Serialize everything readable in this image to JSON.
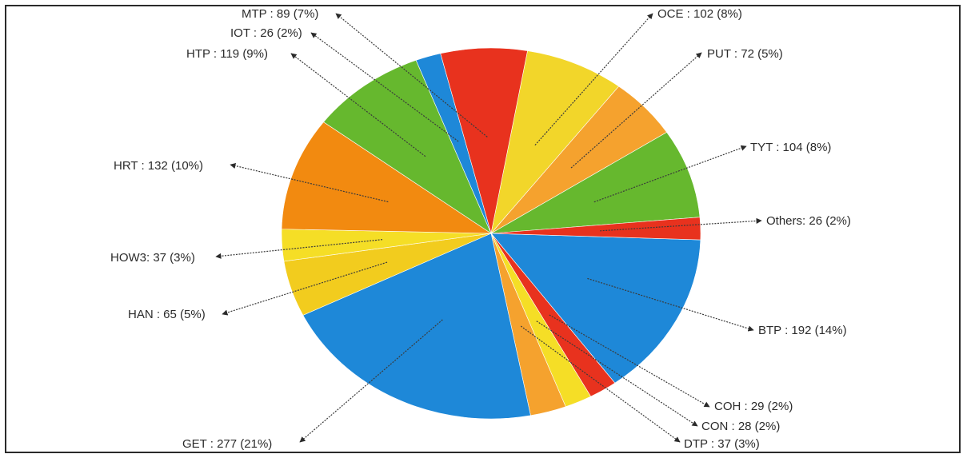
{
  "chart_data": {
    "type": "pie",
    "title": "",
    "legend": "none",
    "slices": [
      {
        "label": "BTP",
        "value": 192,
        "percent": "14%",
        "display": "BTP : 192 (14%)",
        "color": "#1E88D8"
      },
      {
        "label": "COH",
        "value": 29,
        "percent": "2%",
        "display": "COH : 29 (2%)",
        "color": "#E8321E"
      },
      {
        "label": "CON",
        "value": 28,
        "percent": "2%",
        "display": "CON : 28 (2%)",
        "color": "#F5DE26"
      },
      {
        "label": "DTP",
        "value": 37,
        "percent": "3%",
        "display": "DTP : 37 (3%)",
        "color": "#F5A22E"
      },
      {
        "label": "GET",
        "value": 277,
        "percent": "21%",
        "display": "GET : 277 (21%)",
        "color": "#1E88D8"
      },
      {
        "label": "HAN",
        "value": 65,
        "percent": "5%",
        "display": "HAN : 65 (5%)",
        "color": "#F2CC1E"
      },
      {
        "label": "HOW3",
        "value": 37,
        "percent": "3%",
        "display": "HOW3: 37 (3%)",
        "color": "#F5DE26"
      },
      {
        "label": "HRT",
        "value": 132,
        "percent": "10%",
        "display": "HRT : 132 (10%)",
        "color": "#F28A10"
      },
      {
        "label": "HTP",
        "value": 119,
        "percent": "9%",
        "display": "HTP : 119 (9%)",
        "color": "#66B82E"
      },
      {
        "label": "IOT",
        "value": 26,
        "percent": "2%",
        "display": "IOT : 26 (2%)",
        "color": "#1E88D8"
      },
      {
        "label": "MTP",
        "value": 89,
        "percent": "7%",
        "display": "MTP : 89 (7%)",
        "color": "#E8321E"
      },
      {
        "label": "OCE",
        "value": 102,
        "percent": "8%",
        "display": "OCE : 102 (8%)",
        "color": "#F2D62A"
      },
      {
        "label": "PUT",
        "value": 72,
        "percent": "5%",
        "display": "PUT : 72 (5%)",
        "color": "#F5A22E"
      },
      {
        "label": "TYT",
        "value": 104,
        "percent": "8%",
        "display": "TYT : 104 (8%)",
        "color": "#66B82E"
      },
      {
        "label": "Others",
        "value": 26,
        "percent": "2%",
        "display": "Others: 26 (2%)",
        "color": "#E8321E"
      }
    ]
  }
}
